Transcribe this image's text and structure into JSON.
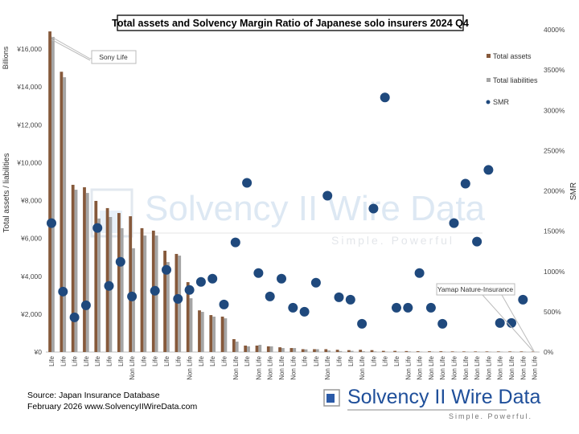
{
  "chart_data": {
    "type": "bar",
    "title": "Total assets and Solvency Margin Ratio of Japanese solo insurers 2024 Q4",
    "ylabel": "Total assets / liabilities",
    "yunit": "Billions",
    "y2label": "SMR",
    "ylim": [
      0,
      16000
    ],
    "y2lim": [
      0,
      4000
    ],
    "yticks": [
      "¥0",
      "¥2,000",
      "¥4,000",
      "¥6,000",
      "¥8,000",
      "¥10,000",
      "¥12,000",
      "¥14,000",
      "¥16,000"
    ],
    "y2ticks": [
      "0%",
      "500%",
      "1000%",
      "1500%",
      "2000%",
      "2500%",
      "3000%",
      "3500%",
      "4000%"
    ],
    "legend_position": "right",
    "grid": false,
    "categories": [
      "Life",
      "Life",
      "Life",
      "Life",
      "Life",
      "Life",
      "Life",
      "Non Life",
      "Life",
      "Life",
      "Life",
      "Life",
      "Non Life",
      "Life",
      "Life",
      "Life",
      "Non Life",
      "Life",
      "Non Life",
      "Non Life",
      "Non Life",
      "Non Life",
      "Life",
      "Life",
      "Non Life",
      "Life",
      "Life",
      "Non Life",
      "Life",
      "Life",
      "Life",
      "Non Life",
      "Non Life",
      "Non Life",
      "Non Life",
      "Non Life",
      "Non Life",
      "Non Life",
      "Non Life",
      "Non Life",
      "Non Life",
      "Non Life",
      "Non Life"
    ],
    "series": [
      {
        "name": "Total assets",
        "type": "bar",
        "axis": "left",
        "color": "#86593B",
        "values": [
          16930,
          14800,
          8830,
          8700,
          7980,
          7600,
          7340,
          7170,
          6540,
          6410,
          5350,
          5180,
          3690,
          2200,
          1950,
          1870,
          680,
          340,
          340,
          300,
          250,
          210,
          150,
          150,
          150,
          120,
          100,
          120,
          100,
          60,
          60,
          50,
          40,
          40,
          40,
          30,
          30,
          30,
          30,
          30,
          30,
          30,
          20
        ]
      },
      {
        "name": "Total liabilities",
        "type": "bar",
        "axis": "left",
        "color": "#A5A5A5",
        "values": [
          16640,
          14510,
          8570,
          8400,
          7050,
          7130,
          6540,
          5480,
          6150,
          6150,
          4750,
          5090,
          2840,
          2120,
          1870,
          1780,
          550,
          300,
          380,
          300,
          210,
          210,
          140,
          150,
          80,
          50,
          60,
          40,
          30,
          20,
          20,
          30,
          20,
          20,
          20,
          20,
          20,
          20,
          20,
          20,
          20,
          20,
          10
        ]
      },
      {
        "name": "SMR",
        "type": "scatter",
        "axis": "right",
        "color": "#1F497D",
        "values": [
          1600,
          750,
          430,
          580,
          1540,
          820,
          1120,
          690,
          null,
          760,
          1020,
          660,
          770,
          870,
          910,
          590,
          1360,
          2100,
          980,
          690,
          910,
          550,
          500,
          860,
          1940,
          680,
          650,
          350,
          1780,
          3160,
          550,
          550,
          980,
          550,
          350,
          1600,
          2090,
          1370,
          2260,
          360,
          360,
          650,
          null
        ]
      }
    ],
    "annotations": [
      {
        "text": "Sony Life",
        "category_index": 0
      },
      {
        "text": "Yamap Nature-Insurance",
        "category_index": 42
      }
    ]
  },
  "footer": {
    "source": "Source: Japan Insurance Database",
    "date_site": "February 2026 www.SolvencyIIWireData.com"
  },
  "logo": {
    "name": "Solvency II Wire Data",
    "tagline": "Simple. Powerful."
  },
  "watermark": {
    "name": "Solvency II Wire Data",
    "tagline": "Simple. Powerful"
  }
}
